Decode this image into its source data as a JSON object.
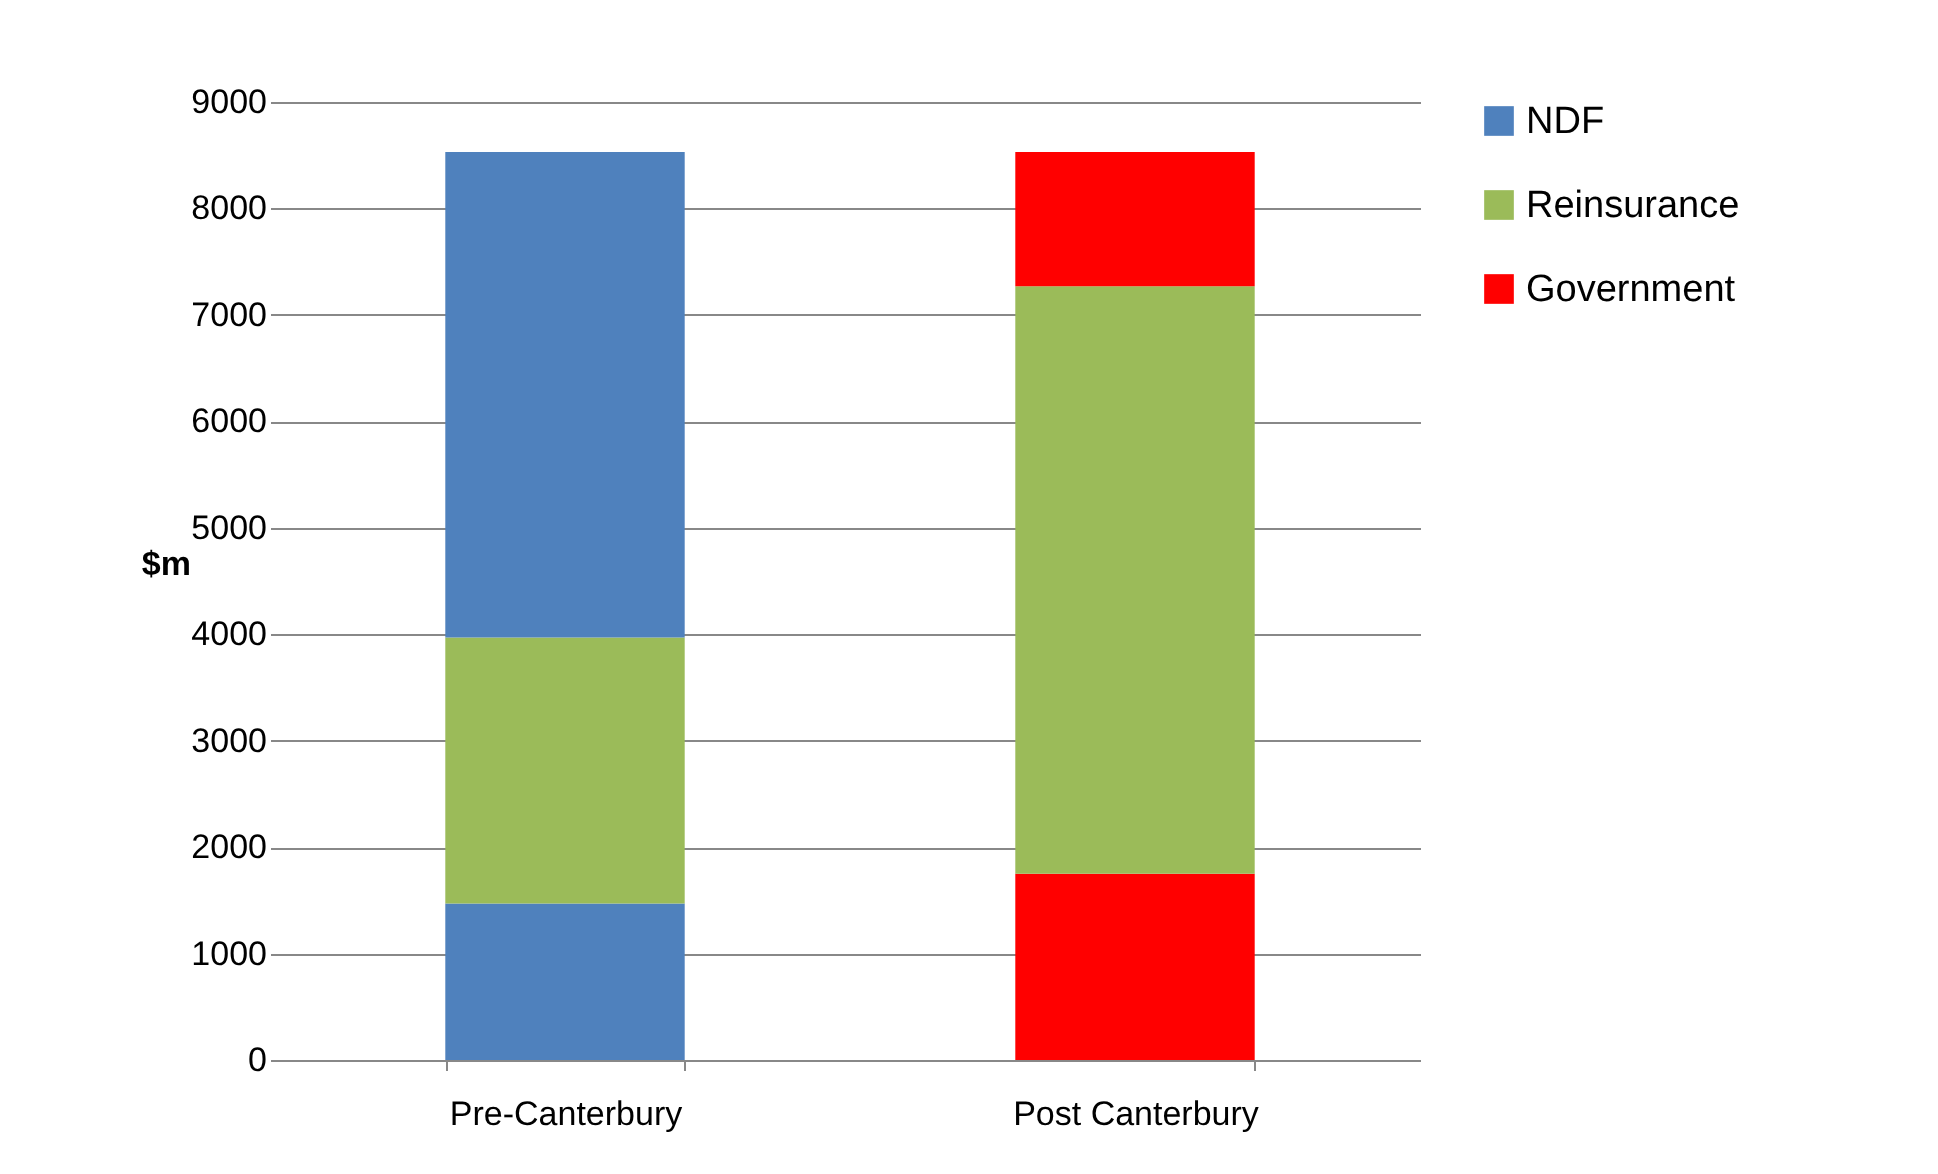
{
  "chart_data": {
    "type": "bar",
    "stacked": true,
    "ylabel": "$m",
    "categories": [
      "Pre-Canterbury",
      "Post Canterbury"
    ],
    "series": [
      {
        "name": "NDF",
        "color": "#4f81bd",
        "values": [
          1470,
          null
        ]
      },
      {
        "color": "#ff0000",
        "values": [
          null,
          1750
        ]
      },
      {
        "name": "Reinsurance",
        "color": "#9bbb59",
        "values": [
          2500,
          5520
        ]
      },
      {
        "color": "#4f81bd",
        "values": [
          4560,
          null
        ]
      },
      {
        "name": "Government",
        "color": "#ff0000",
        "values": [
          null,
          1260
        ]
      }
    ],
    "ylim": [
      0,
      9000
    ],
    "yticks": [
      0,
      1000,
      2000,
      3000,
      4000,
      5000,
      6000,
      7000,
      8000,
      9000
    ],
    "grid": "y",
    "legend": "right"
  }
}
